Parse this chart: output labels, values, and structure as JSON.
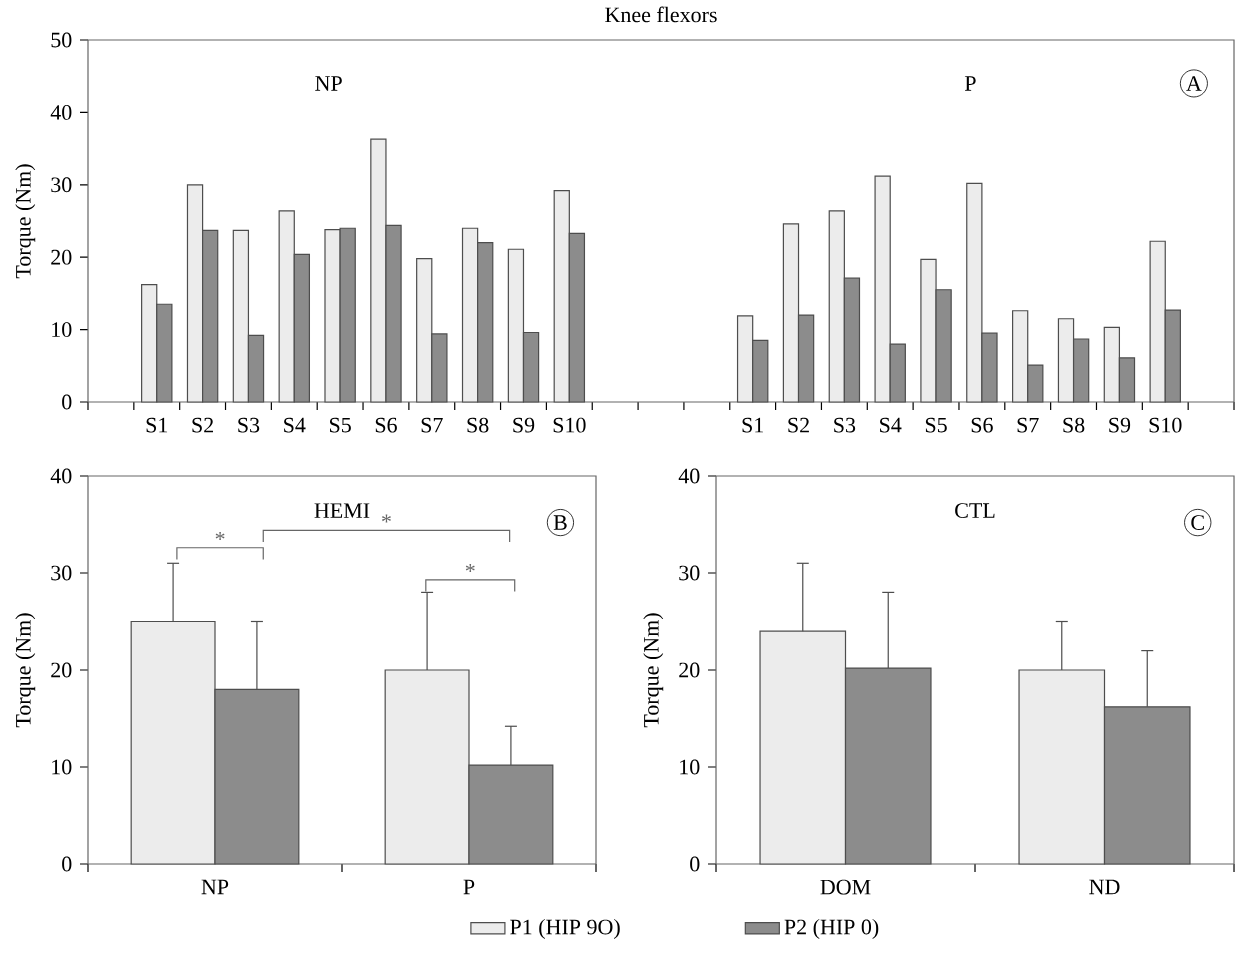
{
  "chart_data": [
    {
      "type": "bar",
      "title": "Knee flexors",
      "ylabel": "Torque (Nm)",
      "categories": [
        null,
        "S1",
        "S2",
        "S3",
        "S4",
        "S5",
        "S6",
        "S7",
        "S8",
        "S9",
        "S10",
        null,
        null,
        null,
        "S1",
        "S2",
        "S3",
        "S4",
        "S5",
        "S6",
        "S7",
        "S8",
        "S9",
        "S10",
        null
      ],
      "series": [
        {
          "color": "#ececec",
          "values": [
            null,
            16.2,
            30.0,
            23.7,
            26.4,
            23.8,
            36.3,
            19.8,
            24.0,
            21.1,
            29.2,
            null,
            null,
            null,
            11.9,
            24.6,
            26.4,
            31.2,
            19.7,
            30.2,
            12.6,
            11.5,
            10.3,
            22.2,
            null
          ]
        },
        {
          "color": "#8c8c8c",
          "values": [
            null,
            13.5,
            23.7,
            9.2,
            20.4,
            24.0,
            24.4,
            9.4,
            22.0,
            9.6,
            23.3,
            null,
            null,
            null,
            8.5,
            12.0,
            17.1,
            8.0,
            15.5,
            9.5,
            5.1,
            8.7,
            6.1,
            12.7,
            null
          ]
        }
      ],
      "ylim": [
        0,
        50
      ],
      "yticks": [
        0,
        10,
        20,
        30,
        40,
        50
      ],
      "annotations": [
        "NP",
        "P",
        "A"
      ]
    },
    {
      "type": "bar",
      "title": "HEMI",
      "ylabel": "Torque (Nm)",
      "categories": [
        "NP",
        "P"
      ],
      "series": [
        {
          "name": "P1 (HIP 9O)",
          "color": "#ececec",
          "values": [
            25,
            20
          ],
          "errors": [
            [
              25,
              31
            ],
            [
              20,
              28
            ]
          ]
        },
        {
          "name": "P2 (HIP 0)",
          "color": "#8c8c8c",
          "values": [
            18,
            10.2
          ],
          "errors": [
            [
              18,
              25
            ],
            [
              10.2,
              14.2
            ]
          ]
        }
      ],
      "ylim": [
        0,
        40
      ],
      "yticks": [
        0,
        10,
        20,
        30,
        40
      ],
      "legend": "bottom",
      "annotations": [
        "B",
        "*",
        "*",
        "*"
      ]
    },
    {
      "type": "bar",
      "title": "CTL",
      "ylabel": "Torque (Nm)",
      "categories": [
        "DOM",
        "ND"
      ],
      "series": [
        {
          "color": "#ececec",
          "values": [
            24,
            20
          ],
          "errors": [
            [
              24,
              31
            ],
            [
              20,
              25
            ]
          ]
        },
        {
          "color": "#8c8c8c",
          "values": [
            20.2,
            16.2
          ],
          "errors": [
            [
              20.2,
              28
            ],
            [
              16.2,
              22
            ]
          ]
        }
      ],
      "ylim": [
        0,
        40
      ],
      "yticks": [
        0,
        10,
        20,
        30,
        40
      ],
      "annotations": [
        "C"
      ]
    }
  ]
}
